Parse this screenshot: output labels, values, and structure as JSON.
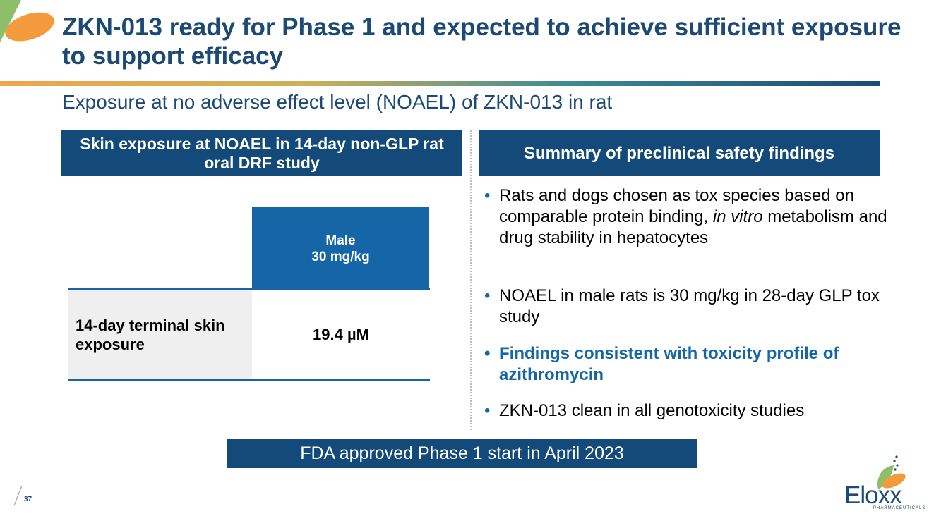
{
  "header": {
    "title": "ZKN-013 ready for Phase 1 and expected to achieve sufficient exposure to support efficacy",
    "subtitle": "Exposure at no adverse effect level (NOAEL) of ZKN-013 in rat"
  },
  "left_panel": {
    "header": "Skin exposure at NOAEL in 14-day non-GLP rat oral DRF study",
    "table": {
      "column_header_line1": "Male",
      "column_header_line2": "30 mg/kg",
      "row_label": "14-day terminal skin exposure",
      "row_value": "19.4 µM"
    }
  },
  "right_panel": {
    "header": "Summary of preclinical safety findings",
    "bullet_symbol": "•",
    "bullet1": {
      "text_a": "Rats and dogs chosen as tox species based on comparable protein binding, ",
      "italic_a": "in vitro",
      "text_b": " metabolism and drug stability in hepatocytes"
    },
    "bullet2": "NOAEL in male rats is 30 mg/kg in 28-day GLP tox study",
    "bullet3": "Findings consistent with toxicity profile of azithromycin",
    "bullet4": "ZKN-013 clean in all genotoxicity studies"
  },
  "banner": "FDA approved Phase 1 start in April 2023",
  "footer": {
    "page_number": "37",
    "logo_name": "Eloxx",
    "logo_sub": "PHARMACEUTICALS"
  },
  "colors": {
    "navy": "#144a7a",
    "blue": "#1565a7",
    "title": "#1c4a74",
    "orange": "#f39a3c",
    "green": "#8dbf6a"
  }
}
